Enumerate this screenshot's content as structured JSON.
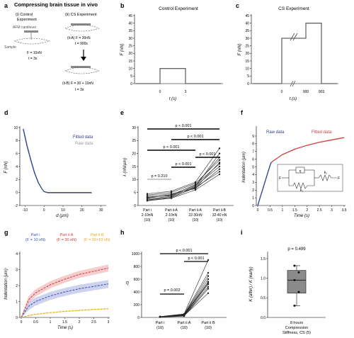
{
  "figure_title": "Compressing brain tissue in vivo",
  "panel_letters": [
    "a",
    "b",
    "c",
    "d",
    "e",
    "f",
    "g",
    "h",
    "i"
  ],
  "panel_a": {
    "control_title_1": "(i) Control",
    "control_title_2": "Experiment",
    "cs_title": "(ii) CS Experiment",
    "afm_label": "AFM cantilever",
    "sample_label": "Sample",
    "control_force": "F = 10nN",
    "control_time": "t = 3s",
    "cs_force_1": "(ii-A) F = 30nN",
    "cs_time_1": "t = 900s",
    "cs_force_2": "(ii-B) F = 30 + 10nN",
    "cs_time_2": "t = 3s"
  },
  "panel_b": {
    "title": "Control Experiment",
    "ylabel": "F (nN)",
    "xlabel": "t (s)",
    "yticks": [
      "0",
      "5",
      "10",
      "15",
      "20",
      "25",
      "30",
      "35",
      "40",
      "45"
    ],
    "xticks": [
      "0",
      "3"
    ]
  },
  "panel_c": {
    "title": "CS Experiment",
    "ylabel": "F (nN)",
    "xlabel": "t (s)",
    "yticks": [
      "0",
      "5",
      "10",
      "15",
      "20",
      "25",
      "30",
      "35",
      "40",
      "45"
    ],
    "xticks": [
      "0",
      "900",
      "903"
    ]
  },
  "panel_d": {
    "ylabel": "F (nN)",
    "xlabel": "d (µm)",
    "yticks": [
      "-2",
      "0",
      "2",
      "4",
      "6",
      "8",
      "10"
    ],
    "xticks": [
      "-10",
      "0",
      "10",
      "20",
      "30"
    ],
    "legend": [
      "Fitted data",
      "Raw data"
    ],
    "colors": {
      "fitted": "#2b3d8f",
      "raw": "#a9a9a9"
    }
  },
  "panel_e": {
    "ylabel": "λ (nN/µm)",
    "yticks": [
      "0",
      "5",
      "10",
      "15",
      "20",
      "25",
      "30"
    ],
    "categories": [
      {
        "l1": "Part i",
        "l2": "2-10nN",
        "l3": "(10)"
      },
      {
        "l1": "Part ii-A",
        "l2": "2-10nN",
        "l3": "(10)"
      },
      {
        "l1": "Part ii-A",
        "l2": "22-30nN",
        "l3": "(10)"
      },
      {
        "l1": "Part ii-B",
        "l2": "32-40 nN",
        "l3": "(10)"
      }
    ],
    "pvalues": [
      "p = 0.210",
      "p < 0.001",
      "p < 0.001",
      "p < 0.001",
      "p < 0.001",
      "p < 0.001"
    ]
  },
  "panel_f": {
    "ylabel": "Indentation (µm)",
    "xlabel": "Time (s)",
    "yticks": [
      "0",
      "1",
      "2",
      "3",
      "4",
      "5",
      "6",
      "7",
      "8",
      "9"
    ],
    "xticks": [
      "0",
      "0.5",
      "1",
      "1.5",
      "2",
      "2.5",
      "3",
      "3.5"
    ],
    "legend": [
      "Raw data",
      "Fitted data"
    ],
    "colors": {
      "raw": "#2b3d8f",
      "fitted": "#d43b3b"
    },
    "inset_labels": {
      "eta": "η",
      "k1": "k₁",
      "k2": "k₂",
      "f_left": "F",
      "f_right": "F"
    }
  },
  "panel_g": {
    "ylabel": "Indentation (µm)",
    "xlabel": "Time (s)",
    "yticks": [
      "0",
      "1",
      "2",
      "3",
      "4"
    ],
    "xticks": [
      "0",
      "0.5",
      "1",
      "1.5",
      "2",
      "2.5",
      "3"
    ],
    "legend": [
      {
        "l1": "Part i",
        "l2": "(F = 10 nN)",
        "color": "#3a4fb8"
      },
      {
        "l1": "Part ii A",
        "l2": "(F = 30 nN)",
        "color": "#d43b3b"
      },
      {
        "l1": "Part ii B",
        "l2": "(F = 30+10 nN)",
        "color": "#e6a817"
      }
    ]
  },
  "panel_h": {
    "ylabel": "η",
    "yticks": [
      "0",
      "200",
      "400",
      "600",
      "800",
      "1000"
    ],
    "categories": [
      {
        "l1": "Part i",
        "l2": "(10)"
      },
      {
        "l1": "Part ii A",
        "l2": "(10)"
      },
      {
        "l1": "Part ii B",
        "l2": "(10)"
      }
    ],
    "pvalues": [
      "p = 0.002",
      "p < 0.001",
      "p < 0.001"
    ]
  },
  "panel_i": {
    "ylabel": "K (after) / K (early)",
    "yticks": [
      "0.0",
      "0.5",
      "1.0",
      "1.5"
    ],
    "xlabel_lines": [
      "8 hours",
      "Compression",
      "Stiffness, CS (5)"
    ],
    "pvalue": "p = 0.499"
  },
  "chart_data": [
    {
      "panel": "b",
      "type": "line",
      "title": "Control Experiment",
      "xlabel": "t (s)",
      "ylabel": "F (nN)",
      "x": [
        "start",
        "0",
        "0",
        "3",
        "3",
        "end"
      ],
      "y": [
        0,
        0,
        10,
        10,
        0,
        0
      ],
      "ylim": [
        0,
        45
      ]
    },
    {
      "panel": "c",
      "type": "line",
      "title": "CS Experiment",
      "xlabel": "t (s)",
      "ylabel": "F (nN)",
      "x": [
        "start",
        "0",
        "0",
        "900",
        "900",
        "903",
        "903",
        "end"
      ],
      "y": [
        0,
        0,
        30,
        30,
        40,
        40,
        0,
        0
      ],
      "ylim": [
        0,
        45
      ]
    },
    {
      "panel": "d",
      "type": "line",
      "xlabel": "d (µm)",
      "ylabel": "F (nN)",
      "xlim": [
        -12,
        32
      ],
      "ylim": [
        -2,
        10
      ],
      "series": [
        {
          "name": "Fitted data",
          "x": [
            -11,
            -9,
            -7,
            -5,
            -3,
            -1,
            0,
            2,
            10,
            20,
            25
          ],
          "y": [
            9.8,
            7.2,
            5.0,
            3.0,
            1.5,
            0.5,
            0.15,
            0,
            0,
            0,
            0
          ]
        }
      ]
    },
    {
      "panel": "e",
      "type": "scatter",
      "ylabel": "λ (nN/µm)",
      "ylim": [
        0,
        30
      ],
      "categories": [
        "Part i 2-10nN",
        "Part ii-A 2-10nN",
        "Part ii-A 22-30nN",
        "Part ii-B 32-40 nN"
      ],
      "series": [
        {
          "values": [
            2.0,
            3.0,
            7.0,
            13.0
          ]
        },
        {
          "values": [
            2.5,
            3.5,
            7.5,
            15.0
          ]
        },
        {
          "values": [
            3.0,
            4.0,
            8.0,
            16.0
          ]
        },
        {
          "values": [
            3.5,
            4.5,
            6.5,
            14.0
          ]
        },
        {
          "values": [
            4.0,
            5.0,
            8.5,
            17.5
          ]
        },
        {
          "values": [
            1.8,
            2.8,
            6.0,
            12.0
          ]
        },
        {
          "values": [
            2.8,
            4.2,
            7.8,
            18.5
          ]
        },
        {
          "values": [
            3.2,
            3.8,
            7.2,
            20.0
          ]
        },
        {
          "values": [
            4.5,
            5.5,
            9.0,
            22.0
          ]
        },
        {
          "values": [
            2.2,
            3.2,
            6.8,
            16.5
          ]
        }
      ]
    },
    {
      "panel": "f",
      "type": "line",
      "xlabel": "Time (s)",
      "ylabel": "Indentation (µm)",
      "xlim": [
        0,
        3.5
      ],
      "ylim": [
        0,
        9
      ],
      "series": [
        {
          "name": "Raw data",
          "x": [
            0,
            0.5,
            0.55
          ],
          "y": [
            0,
            5.2,
            5.6
          ]
        },
        {
          "name": "Fitted data",
          "x": [
            0.55,
            1,
            1.5,
            2,
            2.5,
            3,
            3.5
          ],
          "y": [
            5.6,
            6.6,
            7.3,
            7.8,
            8.2,
            8.5,
            8.8
          ]
        }
      ]
    },
    {
      "panel": "g",
      "type": "area",
      "xlabel": "Time (s)",
      "ylabel": "Indentation (µm)",
      "xlim": [
        0,
        3
      ],
      "ylim": [
        0,
        4
      ],
      "x": [
        0,
        0.25,
        0.5,
        1,
        1.5,
        2,
        2.5,
        3
      ],
      "series": [
        {
          "name": "Part i",
          "values": [
            0,
            0.7,
            1.0,
            1.35,
            1.6,
            1.8,
            1.95,
            2.1
          ]
        },
        {
          "name": "Part ii A",
          "values": [
            0,
            1.1,
            1.55,
            2.05,
            2.4,
            2.7,
            2.9,
            3.1
          ]
        },
        {
          "name": "Part ii B",
          "values": [
            0,
            0.12,
            0.2,
            0.3,
            0.38,
            0.44,
            0.5,
            0.55
          ]
        }
      ]
    },
    {
      "panel": "h",
      "type": "scatter",
      "ylabel": "η",
      "ylim": [
        0,
        1000
      ],
      "categories": [
        "Part i",
        "Part ii A",
        "Part ii B"
      ],
      "series": [
        {
          "values": [
            5,
            20,
            450
          ]
        },
        {
          "values": [
            8,
            30,
            520
          ]
        },
        {
          "values": [
            10,
            40,
            600
          ]
        },
        {
          "values": [
            12,
            25,
            480
          ]
        },
        {
          "values": [
            6,
            35,
            560
          ]
        },
        {
          "values": [
            9,
            45,
            650
          ]
        },
        {
          "values": [
            14,
            50,
            700
          ]
        },
        {
          "values": [
            7,
            28,
            380
          ]
        },
        {
          "values": [
            11,
            38,
            540
          ]
        },
        {
          "values": [
            13,
            55,
            900
          ]
        }
      ]
    },
    {
      "panel": "i",
      "type": "box",
      "ylabel": "K (after) / K (early)",
      "ylim": [
        0,
        1.5
      ],
      "box": {
        "min": 0.3,
        "q1": 0.62,
        "median": 0.95,
        "q3": 1.2,
        "max": 1.32
      },
      "points": [
        0.3,
        0.65,
        0.95,
        1.15,
        1.32
      ]
    }
  ]
}
